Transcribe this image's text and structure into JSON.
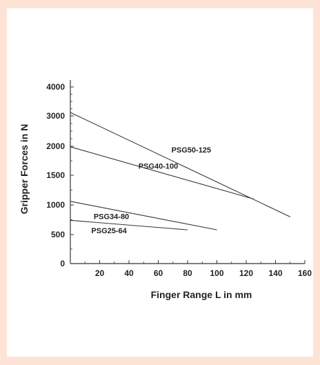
{
  "chart_data": {
    "type": "line",
    "title": "",
    "xlabel": "Finger Range L in mm",
    "ylabel": "Gripper Forces in N",
    "xlim": [
      0,
      160
    ],
    "ylim": [
      0,
      4000
    ],
    "xticks": [
      20,
      40,
      60,
      80,
      100,
      120,
      140,
      160
    ],
    "yticks": [
      0,
      500,
      1000,
      1500,
      2000,
      3000,
      4000
    ],
    "grid": false,
    "legend": "none",
    "series": [
      {
        "name": "PSG50-125",
        "x": [
          0,
          150
        ],
        "y": [
          3120,
          800
        ]
      },
      {
        "name": "PSG40-100",
        "x": [
          0,
          125
        ],
        "y": [
          1990,
          1100
        ]
      },
      {
        "name": "PSG34-80",
        "x": [
          0,
          100
        ],
        "y": [
          1060,
          580
        ]
      },
      {
        "name": "PSG25-64",
        "x": [
          0,
          80
        ],
        "y": [
          740,
          580
        ]
      }
    ]
  }
}
